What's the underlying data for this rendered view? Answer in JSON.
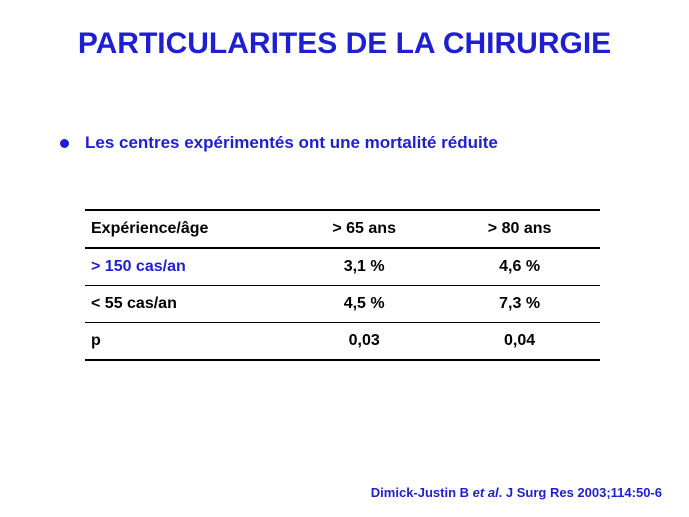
{
  "slide": {
    "title": "PARTICULARITES DE LA CHIRURGIE",
    "bullet": "Les centres expérimentés ont une mortalité réduite"
  },
  "table": {
    "headers": [
      "Expérience/âge",
      "> 65 ans",
      "> 80 ans"
    ],
    "rows": [
      [
        "> 150 cas/an",
        "3,1 %",
        "4,6 %"
      ],
      [
        "< 55 cas/an",
        "4,5 %",
        "7,3 %"
      ],
      [
        "p",
        "0,03",
        "0,04"
      ]
    ]
  },
  "citation": {
    "authors": "Dimick-Justin B ",
    "etal": "et al",
    "rest": ". J Surg Res 2003;114:50-6"
  },
  "colors": {
    "accent": "#1f1fd2",
    "text": "#000000",
    "background": "#ffffff"
  }
}
